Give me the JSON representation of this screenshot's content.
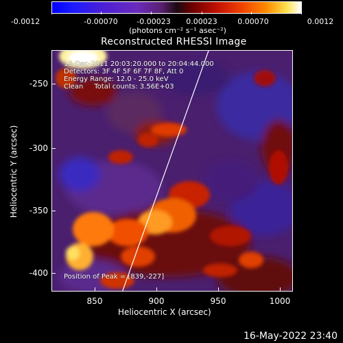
{
  "colorbar": {
    "ticks": [
      "-0.0012",
      "-0.00070",
      "-0.00023",
      "0.00023",
      "0.00070",
      "0.0012"
    ],
    "unit": "(photons cm⁻² s⁻¹ asec⁻²)"
  },
  "title": "Reconstructed RHESSI Image",
  "annotations": {
    "line1": "13-Dec-2011 20:03:20.000 to 20:04:44.000",
    "line2": "Detectors: 3F 4F 5F 6F 7F 8F, Att 0",
    "line3": "Energy Range: 12.0 - 25.0 keV",
    "line4": "Clean     Total counts: 3.56E+03",
    "peak": "Position of Peak = [839,-227]"
  },
  "axes": {
    "xlabel": "Heliocentric X (arcsec)",
    "ylabel": "Heliocentric Y (arcsec)",
    "xticks": [
      "850",
      "900",
      "950",
      "1000"
    ],
    "yticks": [
      "-250",
      "-300",
      "-350",
      "-400"
    ]
  },
  "footer": "16-May-2022 23:40"
}
